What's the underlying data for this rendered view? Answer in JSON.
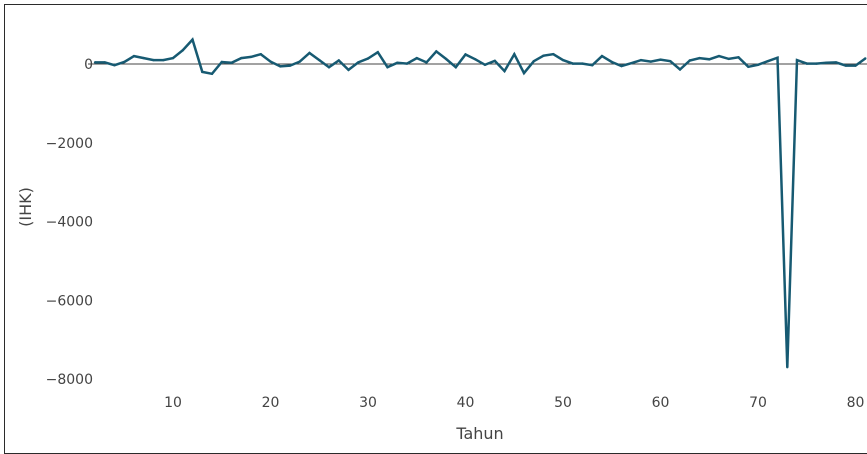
{
  "chart_data": {
    "type": "line",
    "title": "",
    "xlabel": "Tahun",
    "ylabel": "(IHK)",
    "xlim": [
      2,
      81
    ],
    "ylim": [
      -8400,
      1000
    ],
    "xticks": [
      10,
      20,
      30,
      40,
      50,
      60,
      70,
      80
    ],
    "yticks": [
      0,
      -2000,
      -4000,
      -6000,
      -8000
    ],
    "ytick_labels": [
      "0",
      "−2000",
      "−4000",
      "−6000",
      "−8000"
    ],
    "grid": false,
    "zero_line": true,
    "legend": "none",
    "series": [
      {
        "color": "#175a72",
        "x": [
          2,
          3,
          4,
          5,
          6,
          7,
          8,
          9,
          10,
          11,
          12,
          13,
          14,
          15,
          16,
          17,
          18,
          19,
          20,
          21,
          22,
          23,
          24,
          25,
          26,
          27,
          28,
          29,
          30,
          31,
          32,
          33,
          34,
          35,
          36,
          37,
          38,
          39,
          40,
          41,
          42,
          43,
          44,
          45,
          46,
          47,
          48,
          49,
          50,
          51,
          52,
          53,
          54,
          55,
          56,
          57,
          58,
          59,
          60,
          61,
          62,
          63,
          64,
          65,
          66,
          67,
          68,
          69,
          70,
          71,
          72,
          73,
          74,
          75,
          76,
          77,
          78,
          79,
          80,
          81
        ],
        "y": [
          40,
          40,
          -30,
          50,
          200,
          150,
          100,
          100,
          150,
          350,
          620,
          -200,
          -250,
          50,
          30,
          150,
          180,
          250,
          60,
          -60,
          -40,
          60,
          280,
          100,
          -80,
          90,
          -150,
          40,
          140,
          300,
          -80,
          30,
          10,
          150,
          40,
          320,
          130,
          -80,
          240,
          120,
          -20,
          80,
          -180,
          250,
          -230,
          70,
          210,
          250,
          100,
          10,
          10,
          -30,
          200,
          50,
          -50,
          20,
          100,
          60,
          110,
          70,
          -140,
          90,
          150,
          120,
          200,
          130,
          170,
          -70,
          -20,
          70,
          160,
          -7700,
          100,
          10,
          10,
          30,
          40,
          -40,
          -40,
          140
        ]
      }
    ]
  }
}
